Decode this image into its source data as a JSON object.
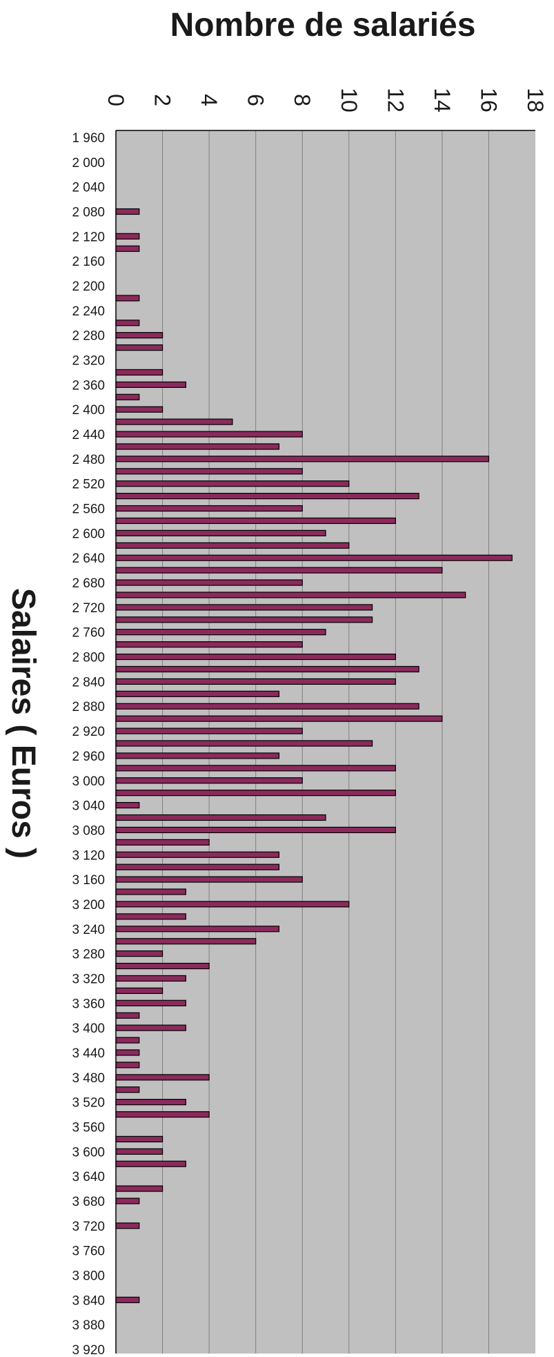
{
  "chart_data": {
    "type": "bar",
    "orientation": "horizontal",
    "title": "Nombre de salariés",
    "ylabel": "Salaires ( Euros )",
    "xlabel": "",
    "x_axis_position": "top",
    "xlim": [
      0,
      18
    ],
    "x_ticks": [
      "0",
      "2",
      "4",
      "6",
      "8",
      "10",
      "12",
      "14",
      "16",
      "18"
    ],
    "grid": true,
    "legend": "none",
    "colors": {
      "bar": "#8b2a5c",
      "plot_background": "#c0c0c0",
      "gridline": "#808080",
      "bar_edge": "#000000"
    },
    "category_ticks": [
      "1 960",
      "2 000",
      "2 040",
      "2 080",
      "2 120",
      "2 160",
      "2 200",
      "2 240",
      "2 280",
      "2 320",
      "2 360",
      "2 400",
      "2 440",
      "2 480",
      "2 520",
      "2 560",
      "2 600",
      "2 640",
      "2 680",
      "2 720",
      "2 760",
      "2 800",
      "2 840",
      "2 880",
      "2 920",
      "2 960",
      "3 000",
      "3 040",
      "3 080",
      "3 120",
      "3 160",
      "3 200",
      "3 240",
      "3 280",
      "3 320",
      "3 360",
      "3 400",
      "3 440",
      "3 480",
      "3 520",
      "3 560",
      "3 600",
      "3 640",
      "3 680",
      "3 720",
      "3 760",
      "3 800",
      "3 840",
      "3 880",
      "3 920"
    ],
    "categories": [
      1960,
      1980,
      2000,
      2020,
      2040,
      2060,
      2080,
      2100,
      2120,
      2140,
      2160,
      2180,
      2200,
      2220,
      2240,
      2260,
      2280,
      2300,
      2320,
      2340,
      2360,
      2380,
      2400,
      2420,
      2440,
      2460,
      2480,
      2500,
      2520,
      2540,
      2560,
      2580,
      2600,
      2620,
      2640,
      2660,
      2680,
      2700,
      2720,
      2740,
      2760,
      2780,
      2800,
      2820,
      2840,
      2860,
      2880,
      2900,
      2920,
      2940,
      2960,
      2980,
      3000,
      3020,
      3040,
      3060,
      3080,
      3100,
      3120,
      3140,
      3160,
      3180,
      3200,
      3220,
      3240,
      3260,
      3280,
      3300,
      3320,
      3340,
      3360,
      3380,
      3400,
      3420,
      3440,
      3460,
      3480,
      3500,
      3520,
      3540,
      3560,
      3580,
      3600,
      3620,
      3640,
      3660,
      3680,
      3700,
      3720,
      3740,
      3760,
      3780,
      3800,
      3820,
      3840,
      3860,
      3880,
      3900,
      3920
    ],
    "values": [
      0,
      0,
      0,
      0,
      0,
      0,
      1,
      0,
      1,
      1,
      0,
      0,
      0,
      1,
      0,
      1,
      2,
      2,
      0,
      2,
      3,
      1,
      2,
      5,
      8,
      7,
      16,
      8,
      10,
      13,
      8,
      12,
      9,
      10,
      17,
      14,
      8,
      15,
      11,
      11,
      9,
      8,
      12,
      13,
      12,
      7,
      13,
      14,
      8,
      11,
      7,
      12,
      8,
      12,
      1,
      9,
      12,
      4,
      7,
      7,
      8,
      3,
      10,
      3,
      7,
      6,
      2,
      4,
      3,
      2,
      3,
      1,
      3,
      1,
      1,
      1,
      4,
      1,
      3,
      4,
      0,
      2,
      2,
      3,
      0,
      2,
      1,
      0,
      1,
      0,
      0,
      0,
      0,
      0,
      1,
      0,
      0,
      0,
      0
    ]
  }
}
